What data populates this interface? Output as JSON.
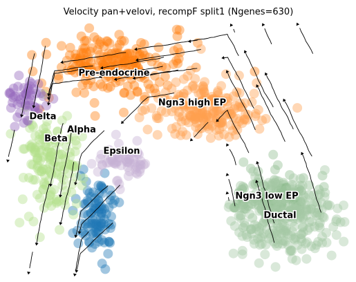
{
  "chart_data": {
    "type": "scatter",
    "title": "Velocity pan+velovi, recompF split1 (Ngenes=630)",
    "xlabel": "",
    "ylabel": "",
    "axes_visible": false,
    "grid": false,
    "legend": "on data",
    "overlay": "velocity streamlines (black arrows)",
    "colors": {
      "Pre-endocrine": "#ff7f0e",
      "Ngn3 high EP": "#ffa04e",
      "Ngn3 low EP": "#8fbc8f",
      "Ductal": "#a4c9a4",
      "Alpha": "#1f77b4",
      "Beta": "#b2df8a",
      "Delta": "#9467bd",
      "Epsilon": "#c5b0d5",
      "streamline": "#000000"
    },
    "clusters": [
      {
        "name": "Pre-endocrine",
        "label": "Pre-endocrine",
        "label_pos": [
          165,
          106
        ],
        "center": [
          165,
          95
        ],
        "spread": [
          95,
          40
        ],
        "count": 220,
        "color": "#ff7f0e"
      },
      {
        "name": "Ngn3 high EP",
        "label": "Ngn3 high EP",
        "label_pos": [
          278,
          149
        ],
        "center": [
          300,
          160
        ],
        "spread": [
          75,
          40
        ],
        "count": 200,
        "color": "#ffa04e"
      },
      {
        "name": "Ngn3 low EP",
        "label": "Ngn3 low EP",
        "label_pos": [
          386,
          284
        ],
        "center": [
          395,
          285
        ],
        "spread": [
          60,
          35
        ],
        "count": 120,
        "color": "#8fbc8f"
      },
      {
        "name": "Ductal",
        "label": "Ductal",
        "label_pos": [
          405,
          312
        ],
        "center": [
          410,
          320
        ],
        "spread": [
          70,
          50
        ],
        "count": 250,
        "color": "#a4c9a4"
      },
      {
        "name": "Alpha",
        "label": "Alpha",
        "label_pos": [
          118,
          188
        ],
        "center": [
          140,
          310
        ],
        "spread": [
          28,
          50
        ],
        "count": 100,
        "color": "#1f77b4"
      },
      {
        "name": "Beta",
        "label": "Beta",
        "label_pos": [
          81,
          201
        ],
        "center": [
          72,
          235
        ],
        "spread": [
          40,
          65
        ],
        "count": 150,
        "color": "#b2df8a"
      },
      {
        "name": "Delta",
        "label": "Delta",
        "label_pos": [
          62,
          169
        ],
        "center": [
          40,
          145
        ],
        "spread": [
          25,
          30
        ],
        "count": 50,
        "color": "#9467bd"
      },
      {
        "name": "Epsilon",
        "label": "Epsilon",
        "label_pos": [
          176,
          219
        ],
        "center": [
          180,
          235
        ],
        "spread": [
          35,
          25
        ],
        "count": 60,
        "color": "#c5b0d5"
      }
    ]
  }
}
